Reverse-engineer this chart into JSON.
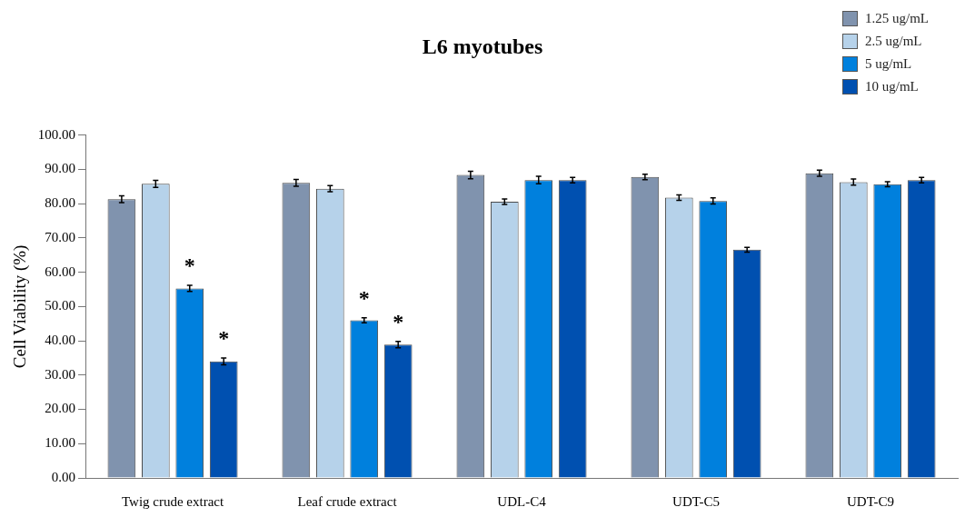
{
  "chart_data": {
    "type": "bar",
    "title": "L6 myotubes",
    "ylabel": "Cell Viability (%)",
    "categories": [
      "Twig crude extract",
      "Leaf crude extract",
      "UDL-C4",
      "UDT-C5",
      "UDT-C9"
    ],
    "series": [
      {
        "name": "1.25 ug/mL",
        "color": "#8093ae",
        "values": [
          81.3,
          86.1,
          88.4,
          87.8,
          88.9
        ],
        "errors": [
          1.0,
          1.0,
          1.1,
          0.8,
          0.9
        ]
      },
      {
        "name": "2.5 ug/mL",
        "color": "#b6d2ea",
        "values": [
          85.8,
          84.4,
          80.6,
          81.8,
          86.3
        ],
        "errors": [
          1.0,
          0.9,
          0.8,
          0.8,
          0.9
        ]
      },
      {
        "name": "5 ug/mL",
        "color": "#0080dd",
        "values": [
          55.3,
          46.0,
          86.9,
          80.8,
          85.7
        ],
        "errors": [
          0.9,
          0.7,
          1.1,
          0.9,
          0.7
        ]
      },
      {
        "name": "10 ug/mL",
        "color": "#0050b0",
        "values": [
          34.0,
          38.9,
          86.9,
          66.6,
          86.9
        ],
        "errors": [
          1.0,
          0.9,
          0.8,
          0.7,
          0.8
        ]
      }
    ],
    "ylim": [
      0,
      100
    ],
    "yticks": [
      {
        "value": 0,
        "label": "0.00"
      },
      {
        "value": 10,
        "label": "10.00"
      },
      {
        "value": 20,
        "label": "20.00"
      },
      {
        "value": 30,
        "label": "30.00"
      },
      {
        "value": 40,
        "label": "40.00"
      },
      {
        "value": 50,
        "label": "50.00"
      },
      {
        "value": 60,
        "label": "60.00"
      },
      {
        "value": 70,
        "label": "70.00"
      },
      {
        "value": 80,
        "label": "80.00"
      },
      {
        "value": 90,
        "label": "90.00"
      },
      {
        "value": 100,
        "label": "100.00"
      }
    ],
    "annotations": [
      {
        "text": "*",
        "x": "Twig crude extract",
        "y": 55.3
      },
      {
        "text": "*",
        "x": "Twig crude extract",
        "y": 34.0
      },
      {
        "text": "*",
        "x": "Leaf crude extract",
        "y": 46.0
      },
      {
        "text": "*",
        "x": "Leaf crude extract",
        "y": 38.9
      }
    ],
    "grid": false,
    "legend": "top right"
  }
}
